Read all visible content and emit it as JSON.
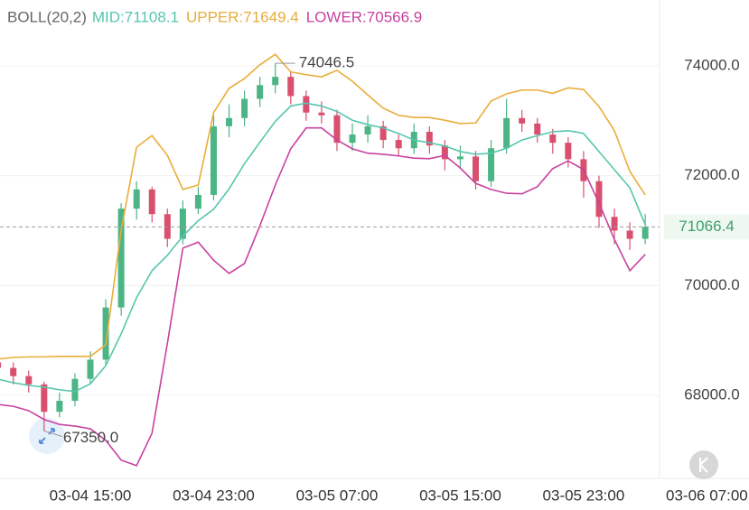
{
  "chart_data": {
    "type": "candlestick",
    "indicator": "BOLL(20,2)",
    "categories": [
      null,
      null,
      null,
      null,
      null,
      null,
      "03-04 15:00",
      null,
      null,
      null,
      null,
      null,
      null,
      null,
      "03-04 23:00",
      null,
      null,
      null,
      null,
      null,
      null,
      null,
      "03-05 07:00",
      null,
      null,
      null,
      null,
      null,
      null,
      null,
      "03-05 15:00",
      null,
      null,
      null,
      null,
      null,
      null,
      null,
      "03-05 23:00",
      null,
      null,
      null,
      null,
      null,
      null,
      null,
      "03-06 07:00"
    ],
    "candles": {
      "open": [
        68600,
        68500,
        68350,
        68200,
        67700,
        67900,
        68300,
        68650,
        69600,
        71400,
        71750,
        71300,
        70850,
        71400,
        71650,
        72900,
        73050,
        73400,
        73650,
        73800,
        73450,
        73150,
        73100,
        72600,
        72750,
        72900,
        72650,
        72500,
        72800,
        72550,
        72300,
        72350,
        71900,
        72500,
        73050,
        72950,
        72750,
        72600,
        72300,
        71900,
        71250,
        71000,
        70850,
        null,
        null,
        null,
        null
      ],
      "high": [
        68800,
        68600,
        68450,
        68250,
        68050,
        68400,
        68800,
        69750,
        71500,
        71900,
        71800,
        71400,
        71550,
        71800,
        73100,
        73300,
        73550,
        73800,
        74046.5,
        73900,
        73550,
        73350,
        73200,
        72950,
        73100,
        73000,
        72750,
        72950,
        72900,
        72650,
        72550,
        72450,
        72650,
        73400,
        73200,
        73050,
        72850,
        72700,
        72450,
        72000,
        71400,
        71150,
        71300,
        null,
        null,
        null,
        null
      ],
      "low": [
        68350,
        68200,
        68050,
        67350,
        67600,
        67800,
        68200,
        68550,
        69450,
        71200,
        71150,
        70700,
        70750,
        71300,
        71550,
        72700,
        72900,
        73250,
        73500,
        73300,
        73000,
        72950,
        72450,
        72450,
        72600,
        72500,
        72350,
        72400,
        72400,
        72100,
        72150,
        71750,
        71800,
        72400,
        72800,
        72600,
        72400,
        72150,
        71600,
        71050,
        70750,
        70650,
        70750,
        null,
        null,
        null,
        null
      ],
      "close": [
        68500,
        68350,
        68200,
        67700,
        67900,
        68300,
        68650,
        69600,
        71400,
        71750,
        71300,
        70850,
        71400,
        71650,
        72900,
        73050,
        73400,
        73650,
        73800,
        73450,
        73150,
        73100,
        72600,
        72750,
        72900,
        72650,
        72500,
        72800,
        72550,
        72300,
        72350,
        71900,
        72500,
        73050,
        72950,
        72750,
        72600,
        72300,
        71900,
        71250,
        71000,
        70850,
        71066.4,
        null,
        null,
        null,
        null
      ],
      "up_color": "#4bb585",
      "down_color": "#d8506e"
    },
    "series": [
      {
        "name": "MID",
        "legend_label": "MID:71108.1",
        "color": "#56c6ad",
        "values": [
          68295,
          68230,
          68180,
          68150,
          68100,
          68070,
          68210,
          68540,
          69120,
          69780,
          70270,
          70550,
          70900,
          71180,
          71390,
          71760,
          72220,
          72610,
          72990,
          73270,
          73320,
          73270,
          73170,
          73010,
          72930,
          72870,
          72770,
          72650,
          72600,
          72540,
          72440,
          72390,
          72410,
          72500,
          72650,
          72730,
          72800,
          72820,
          72770,
          72440,
          72110,
          71780,
          71108.1,
          null,
          null,
          null,
          null
        ]
      },
      {
        "name": "UPPER",
        "legend_label": "UPPER:71649.4",
        "color": "#e9ad3a",
        "values": [
          68660,
          68690,
          68700,
          68700,
          68710,
          68710,
          68710,
          68920,
          71010,
          72520,
          72730,
          72370,
          71750,
          71830,
          73150,
          73590,
          73770,
          74020,
          74210,
          73890,
          73840,
          73800,
          73920,
          73720,
          73470,
          73230,
          73100,
          73060,
          73060,
          73010,
          72950,
          72960,
          73360,
          73490,
          73560,
          73560,
          73500,
          73600,
          73570,
          73260,
          72820,
          72080,
          71649.4,
          null,
          null,
          null,
          null
        ]
      },
      {
        "name": "LOWER",
        "legend_label": "LOWER:70566.9",
        "color": "#c8419f",
        "values": [
          67835,
          67800,
          67720,
          67560,
          67470,
          67440,
          67390,
          67180,
          66820,
          66720,
          67310,
          68950,
          70680,
          70790,
          70460,
          70220,
          70400,
          71090,
          71830,
          72490,
          72870,
          72870,
          72650,
          72490,
          72410,
          72390,
          72360,
          72320,
          72310,
          72370,
          72140,
          71860,
          71750,
          71680,
          71670,
          71800,
          72130,
          72270,
          72110,
          71500,
          70840,
          70270,
          70566.9,
          null,
          null,
          null,
          null
        ]
      }
    ],
    "high_label": "74046.5",
    "low_label": "67350.0",
    "last_price_color": "#3f9e6b",
    "ylim": [
      66500,
      75200
    ],
    "yticks": [
      {
        "value": 68000,
        "label": "68000.0"
      },
      {
        "value": 70000,
        "label": "70000.0"
      },
      {
        "value": 72000,
        "label": "72000.0"
      },
      {
        "value": 74000,
        "label": "74000.0"
      }
    ],
    "grid": true
  }
}
